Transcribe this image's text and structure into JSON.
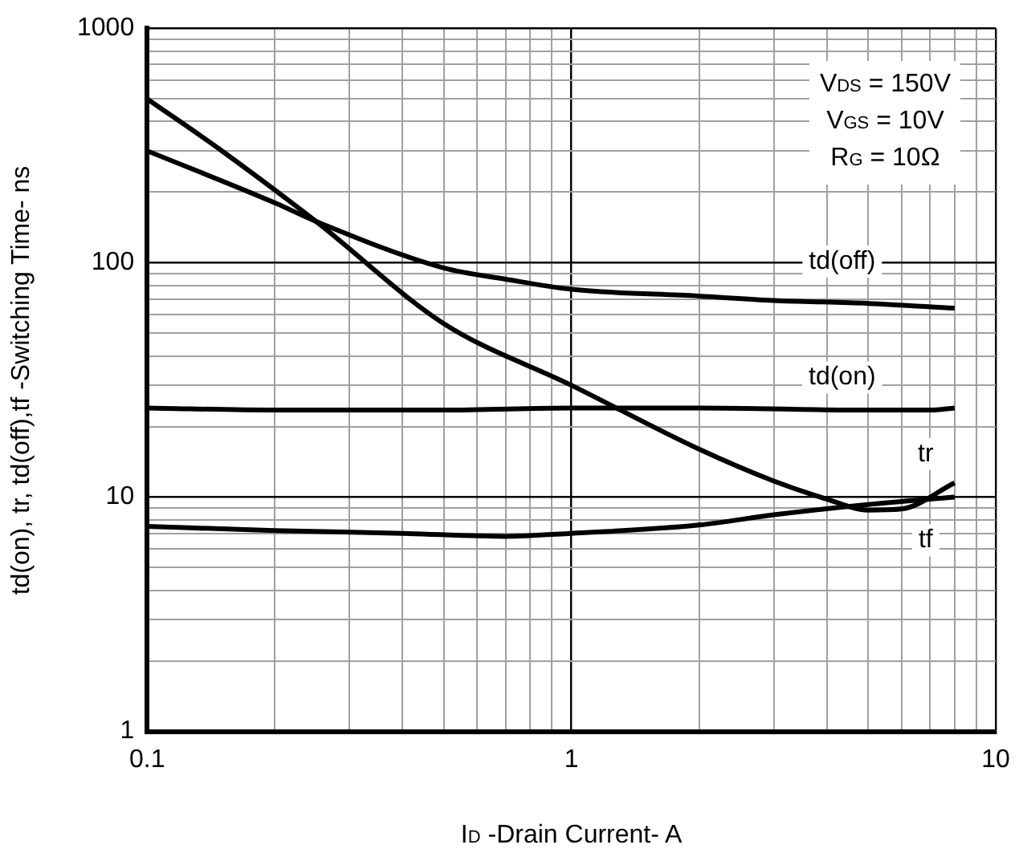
{
  "chart_data": {
    "type": "line",
    "xlabel": "I$_{D}$ -Drain Current- A",
    "ylabel": "td(on), tr, td(off),tf -Switching Time- ns",
    "annotations": [
      "V$_{DS}$ = 150V",
      "V$_{GS}$ = 10V",
      "R$_{G}$ = 10Ω"
    ],
    "log": "xy",
    "grid": true,
    "legend": false,
    "marker": "none",
    "line_style": "solid",
    "xlim": [
      0.1,
      10
    ],
    "ylim": [
      1,
      1000
    ],
    "xticks": [
      0.1,
      {
        "value": 0.2,
        "label": null
      },
      {
        "value": 0.3,
        "label": null
      },
      {
        "value": 0.4,
        "label": null
      },
      {
        "value": 0.5,
        "label": null
      },
      {
        "value": 0.6,
        "label": null
      },
      {
        "value": 0.7,
        "label": null
      },
      {
        "value": 0.8,
        "label": null
      },
      {
        "value": 0.9,
        "label": null
      },
      1,
      {
        "value": 2,
        "label": null
      },
      {
        "value": 3,
        "label": null
      },
      {
        "value": 4,
        "label": null
      },
      {
        "value": 5,
        "label": null
      },
      {
        "value": 6,
        "label": null
      },
      {
        "value": 7,
        "label": null
      },
      {
        "value": 8,
        "label": null
      },
      {
        "value": 9,
        "label": null
      },
      10
    ],
    "yticks": [
      1,
      {
        "value": 2,
        "label": null
      },
      {
        "value": 3,
        "label": null
      },
      {
        "value": 4,
        "label": null
      },
      {
        "value": 5,
        "label": null
      },
      {
        "value": 6,
        "label": null
      },
      {
        "value": 7,
        "label": null
      },
      {
        "value": 8,
        "label": null
      },
      {
        "value": 9,
        "label": null
      },
      10,
      {
        "value": 20,
        "label": null
      },
      {
        "value": 30,
        "label": null
      },
      {
        "value": 40,
        "label": null
      },
      {
        "value": 50,
        "label": null
      },
      {
        "value": 60,
        "label": null
      },
      {
        "value": 70,
        "label": null
      },
      {
        "value": 80,
        "label": null
      },
      {
        "value": 90,
        "label": null
      },
      100,
      {
        "value": 200,
        "label": null
      },
      {
        "value": 300,
        "label": null
      },
      {
        "value": 400,
        "label": null
      },
      {
        "value": 500,
        "label": null
      },
      {
        "value": 600,
        "label": null
      },
      {
        "value": 700,
        "label": null
      },
      {
        "value": 800,
        "label": null
      },
      {
        "value": 900,
        "label": null
      },
      1000
    ],
    "series": [
      {
        "name": "td(off)",
        "color": "#000000",
        "x": [
          0.1,
          0.2,
          0.25,
          0.5,
          0.7,
          1,
          2,
          3,
          5,
          8
        ],
        "values": [
          300,
          180,
          150,
          95,
          85,
          77,
          72,
          69,
          67,
          64
        ]
      },
      {
        "name": "td(on)",
        "color": "#000000",
        "x": [
          0.1,
          0.2,
          0.5,
          1,
          2,
          5,
          7,
          8
        ],
        "values": [
          24,
          23.5,
          23.5,
          24,
          24,
          23.5,
          23.5,
          24
        ]
      },
      {
        "name": "tr",
        "color": "#000000",
        "x": [
          0.1,
          0.15,
          0.25,
          0.5,
          1,
          2,
          3,
          4,
          5,
          6,
          8
        ],
        "values": [
          500,
          300,
          150,
          55,
          30,
          16,
          11.7,
          9.8,
          8.8,
          8.9,
          11.5
        ]
      },
      {
        "name": "tf",
        "color": "#000000",
        "x": [
          0.1,
          0.2,
          0.4,
          0.7,
          1,
          2,
          3,
          5,
          8
        ],
        "values": [
          7.5,
          7.2,
          7.0,
          6.8,
          7.0,
          7.6,
          8.4,
          9.3,
          10
        ]
      }
    ]
  }
}
